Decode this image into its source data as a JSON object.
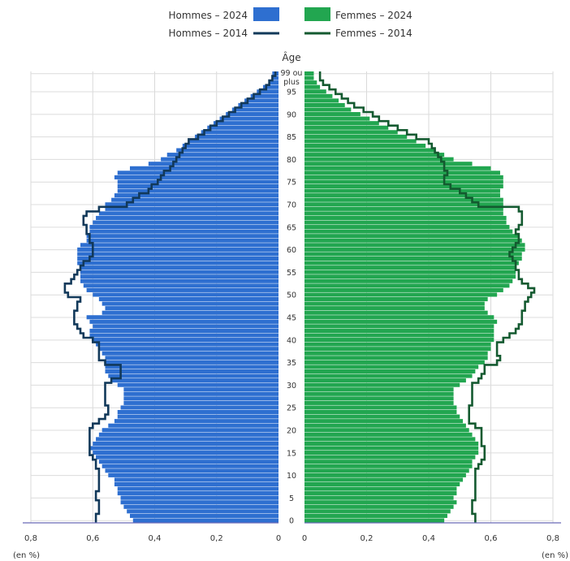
{
  "chart_data": {
    "type": "bar",
    "orientation": "horizontal-pyramid",
    "title": "",
    "age_axis_title": "Âge",
    "top_age_label": [
      "99 ou",
      "plus"
    ],
    "age_tick_labels": [
      "0",
      "5",
      "10",
      "15",
      "20",
      "25",
      "30",
      "35",
      "40",
      "45",
      "50",
      "55",
      "60",
      "65",
      "70",
      "75",
      "80",
      "85",
      "90",
      "95"
    ],
    "age_ticks": [
      0,
      5,
      10,
      15,
      20,
      25,
      30,
      35,
      40,
      45,
      50,
      55,
      60,
      65,
      70,
      75,
      80,
      85,
      90,
      95
    ],
    "x_tick_values": [
      0.8,
      0.6,
      0.4,
      0.2,
      0
    ],
    "x_tick_labels": [
      "0,8",
      "0,6",
      "0,4",
      "0,2",
      "0"
    ],
    "x_unit_label": "(en %)",
    "xlim": [
      0,
      0.8
    ],
    "ages": [
      0,
      1,
      2,
      3,
      4,
      5,
      6,
      7,
      8,
      9,
      10,
      11,
      12,
      13,
      14,
      15,
      16,
      17,
      18,
      19,
      20,
      21,
      22,
      23,
      24,
      25,
      26,
      27,
      28,
      29,
      30,
      31,
      32,
      33,
      34,
      35,
      36,
      37,
      38,
      39,
      40,
      41,
      42,
      43,
      44,
      45,
      46,
      47,
      48,
      49,
      50,
      51,
      52,
      53,
      54,
      55,
      56,
      57,
      58,
      59,
      60,
      61,
      62,
      63,
      64,
      65,
      66,
      67,
      68,
      69,
      70,
      71,
      72,
      73,
      74,
      75,
      76,
      77,
      78,
      79,
      80,
      81,
      82,
      83,
      84,
      85,
      86,
      87,
      88,
      89,
      90,
      91,
      92,
      93,
      94,
      95,
      96,
      97,
      98,
      99
    ],
    "legend": [
      {
        "name": "Hommes – 2024",
        "kind": "bar",
        "color": "#2e6fd0"
      },
      {
        "name": "Hommes – 2014",
        "kind": "line",
        "color": "#12395a"
      },
      {
        "name": "Femmes – 2024",
        "kind": "bar",
        "color": "#22a650"
      },
      {
        "name": "Femmes – 2014",
        "kind": "line",
        "color": "#145a30"
      }
    ],
    "series": [
      {
        "name": "Hommes – 2024",
        "side": "left",
        "kind": "bar",
        "color": "#2e6fd0",
        "values": [
          0.47,
          0.48,
          0.49,
          0.5,
          0.51,
          0.51,
          0.52,
          0.52,
          0.53,
          0.53,
          0.55,
          0.56,
          0.57,
          0.58,
          0.59,
          0.6,
          0.61,
          0.6,
          0.59,
          0.58,
          0.57,
          0.55,
          0.53,
          0.52,
          0.52,
          0.51,
          0.5,
          0.5,
          0.5,
          0.5,
          0.52,
          0.54,
          0.55,
          0.56,
          0.56,
          0.56,
          0.56,
          0.57,
          0.58,
          0.59,
          0.6,
          0.61,
          0.61,
          0.6,
          0.61,
          0.62,
          0.57,
          0.56,
          0.57,
          0.58,
          0.6,
          0.62,
          0.63,
          0.64,
          0.64,
          0.64,
          0.64,
          0.65,
          0.65,
          0.65,
          0.65,
          0.64,
          0.62,
          0.62,
          0.61,
          0.61,
          0.6,
          0.59,
          0.58,
          0.56,
          0.56,
          0.54,
          0.53,
          0.52,
          0.52,
          0.52,
          0.53,
          0.52,
          0.48,
          0.42,
          0.38,
          0.36,
          0.33,
          0.31,
          0.29,
          0.27,
          0.25,
          0.23,
          0.21,
          0.19,
          0.17,
          0.15,
          0.13,
          0.11,
          0.09,
          0.07,
          0.05,
          0.03,
          0.02,
          0.02
        ]
      },
      {
        "name": "Hommes – 2014",
        "side": "left",
        "kind": "line",
        "color": "#12395a",
        "values": [
          0.59,
          0.59,
          0.58,
          0.58,
          0.58,
          0.59,
          0.59,
          0.58,
          0.58,
          0.58,
          0.58,
          0.58,
          0.59,
          0.59,
          0.6,
          0.61,
          0.61,
          0.61,
          0.61,
          0.61,
          0.61,
          0.6,
          0.58,
          0.56,
          0.55,
          0.55,
          0.56,
          0.56,
          0.56,
          0.56,
          0.56,
          0.54,
          0.51,
          0.51,
          0.51,
          0.56,
          0.58,
          0.58,
          0.58,
          0.58,
          0.6,
          0.63,
          0.64,
          0.65,
          0.66,
          0.66,
          0.66,
          0.65,
          0.65,
          0.64,
          0.68,
          0.69,
          0.69,
          0.67,
          0.66,
          0.65,
          0.64,
          0.63,
          0.61,
          0.6,
          0.6,
          0.6,
          0.61,
          0.61,
          0.62,
          0.62,
          0.63,
          0.63,
          0.62,
          0.58,
          0.49,
          0.47,
          0.45,
          0.42,
          0.41,
          0.39,
          0.38,
          0.37,
          0.35,
          0.34,
          0.33,
          0.32,
          0.31,
          0.3,
          0.29,
          0.26,
          0.24,
          0.22,
          0.2,
          0.18,
          0.16,
          0.14,
          0.12,
          0.1,
          0.08,
          0.06,
          0.04,
          0.03,
          0.02,
          0.01
        ]
      },
      {
        "name": "Femmes – 2024",
        "side": "right",
        "kind": "bar",
        "color": "#22a650",
        "values": [
          0.45,
          0.46,
          0.47,
          0.48,
          0.49,
          0.48,
          0.49,
          0.49,
          0.5,
          0.51,
          0.52,
          0.53,
          0.54,
          0.54,
          0.55,
          0.56,
          0.56,
          0.56,
          0.55,
          0.54,
          0.53,
          0.52,
          0.51,
          0.5,
          0.49,
          0.49,
          0.48,
          0.48,
          0.48,
          0.48,
          0.5,
          0.52,
          0.54,
          0.55,
          0.56,
          0.58,
          0.59,
          0.59,
          0.6,
          0.6,
          0.61,
          0.61,
          0.61,
          0.61,
          0.62,
          0.61,
          0.59,
          0.58,
          0.58,
          0.59,
          0.62,
          0.64,
          0.66,
          0.67,
          0.68,
          0.68,
          0.68,
          0.69,
          0.7,
          0.7,
          0.71,
          0.71,
          0.7,
          0.69,
          0.67,
          0.66,
          0.65,
          0.65,
          0.64,
          0.64,
          0.64,
          0.64,
          0.63,
          0.63,
          0.64,
          0.64,
          0.64,
          0.63,
          0.6,
          0.54,
          0.48,
          0.45,
          0.42,
          0.39,
          0.36,
          0.33,
          0.3,
          0.27,
          0.24,
          0.21,
          0.18,
          0.15,
          0.13,
          0.11,
          0.09,
          0.07,
          0.05,
          0.04,
          0.03,
          0.03
        ]
      },
      {
        "name": "Femmes – 2014",
        "side": "right",
        "kind": "line",
        "color": "#145a30",
        "values": [
          0.55,
          0.55,
          0.54,
          0.54,
          0.54,
          0.55,
          0.55,
          0.55,
          0.55,
          0.55,
          0.55,
          0.55,
          0.56,
          0.57,
          0.58,
          0.58,
          0.58,
          0.57,
          0.57,
          0.57,
          0.57,
          0.55,
          0.53,
          0.53,
          0.53,
          0.53,
          0.54,
          0.54,
          0.54,
          0.54,
          0.54,
          0.56,
          0.57,
          0.58,
          0.58,
          0.62,
          0.63,
          0.62,
          0.62,
          0.62,
          0.64,
          0.66,
          0.68,
          0.69,
          0.7,
          0.7,
          0.7,
          0.71,
          0.71,
          0.72,
          0.73,
          0.74,
          0.72,
          0.7,
          0.69,
          0.69,
          0.68,
          0.68,
          0.67,
          0.66,
          0.67,
          0.68,
          0.69,
          0.69,
          0.68,
          0.69,
          0.7,
          0.7,
          0.7,
          0.69,
          0.56,
          0.54,
          0.52,
          0.5,
          0.47,
          0.45,
          0.45,
          0.46,
          0.45,
          0.45,
          0.44,
          0.43,
          0.42,
          0.41,
          0.4,
          0.36,
          0.33,
          0.3,
          0.27,
          0.24,
          0.22,
          0.19,
          0.16,
          0.14,
          0.12,
          0.1,
          0.08,
          0.06,
          0.05,
          0.05
        ]
      }
    ]
  }
}
